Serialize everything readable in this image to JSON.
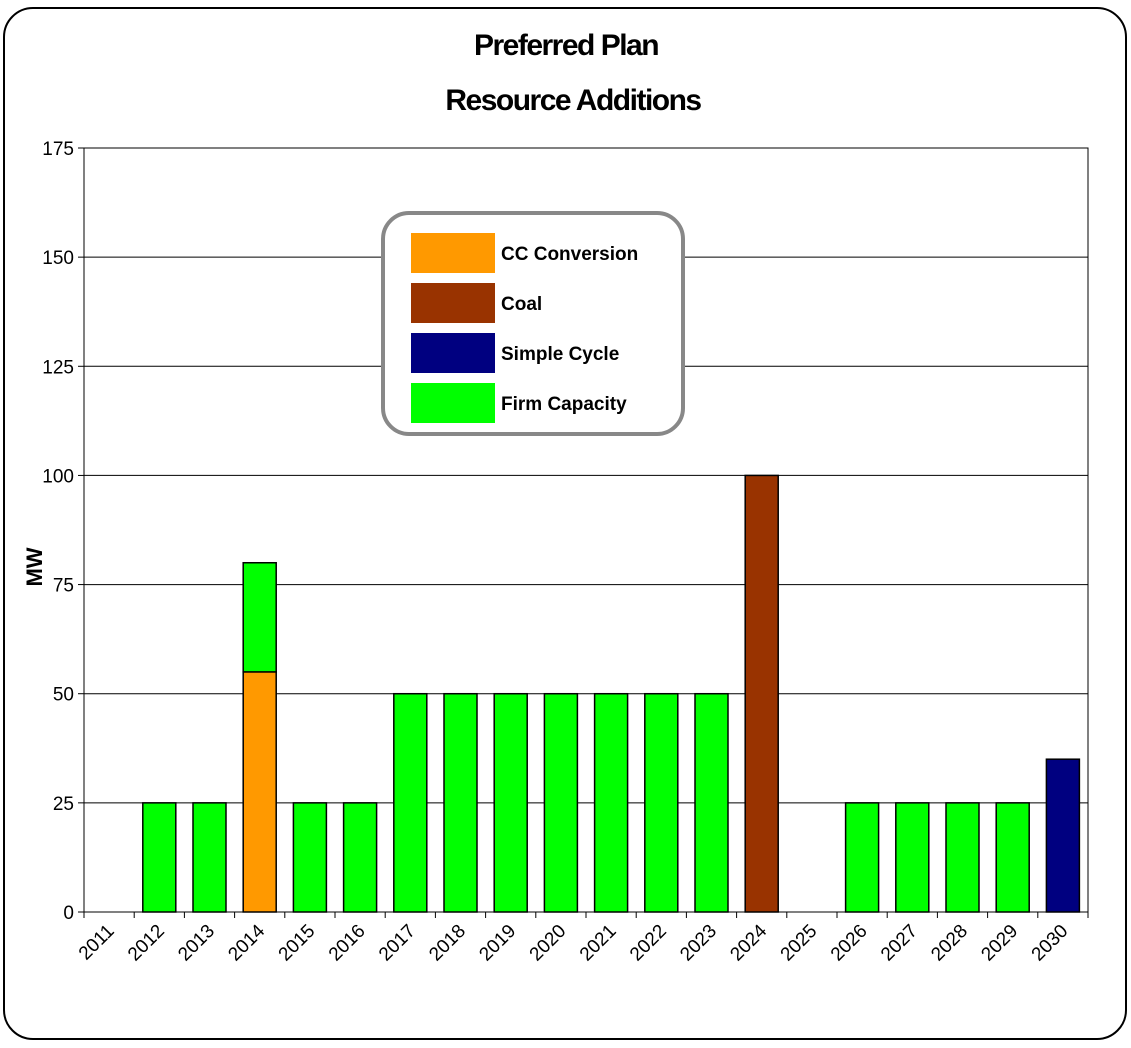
{
  "chart_data": {
    "type": "bar",
    "stacked": true,
    "title": "Preferred Plan",
    "subtitle": "Resource Additions",
    "xlabel": "",
    "ylabel": "MW",
    "ylim": [
      0,
      175
    ],
    "yticks": [
      0,
      25,
      50,
      75,
      100,
      125,
      150,
      175
    ],
    "grid": true,
    "legend_position": "top-center",
    "categories": [
      "2011",
      "2012",
      "2013",
      "2014",
      "2015",
      "2016",
      "2017",
      "2018",
      "2019",
      "2020",
      "2021",
      "2022",
      "2023",
      "2024",
      "2025",
      "2026",
      "2027",
      "2028",
      "2029",
      "2030"
    ],
    "series": [
      {
        "name": "CC Conversion",
        "color": "#FF9900",
        "values": [
          0,
          0,
          0,
          55,
          0,
          0,
          0,
          0,
          0,
          0,
          0,
          0,
          0,
          0,
          0,
          0,
          0,
          0,
          0,
          0
        ]
      },
      {
        "name": "Coal",
        "color": "#993300",
        "values": [
          0,
          0,
          0,
          0,
          0,
          0,
          0,
          0,
          0,
          0,
          0,
          0,
          0,
          100,
          0,
          0,
          0,
          0,
          0,
          0
        ]
      },
      {
        "name": "Simple Cycle",
        "color": "#000080",
        "values": [
          0,
          0,
          0,
          0,
          0,
          0,
          0,
          0,
          0,
          0,
          0,
          0,
          0,
          0,
          0,
          0,
          0,
          0,
          0,
          35
        ]
      },
      {
        "name": "Firm Capacity",
        "color": "#00FF00",
        "values": [
          0,
          25,
          25,
          25,
          25,
          25,
          50,
          50,
          50,
          50,
          50,
          50,
          50,
          0,
          0,
          25,
          25,
          25,
          25,
          0
        ]
      }
    ]
  }
}
